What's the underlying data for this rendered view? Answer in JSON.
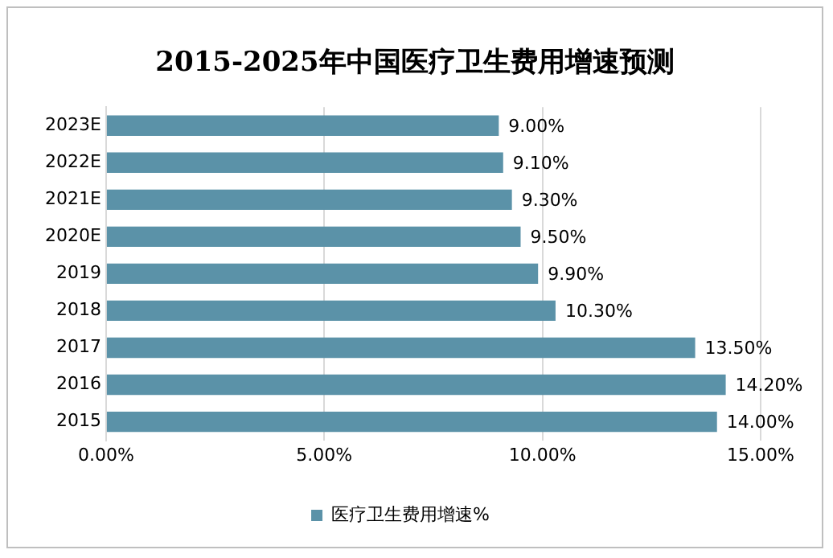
{
  "chart_data": {
    "type": "bar",
    "orientation": "horizontal",
    "title": "2015-2025年中国医疗卫生费用增速预测",
    "categories": [
      "2023E",
      "2022E",
      "2021E",
      "2020E",
      "2019",
      "2018",
      "2017",
      "2016",
      "2015"
    ],
    "series": [
      {
        "name": "医疗卫生费用增速%",
        "color": "#5b92a8",
        "values": [
          9.0,
          9.1,
          9.3,
          9.5,
          9.9,
          10.3,
          13.5,
          14.2,
          14.0
        ],
        "value_labels": [
          "9.00%",
          "9.10%",
          "9.30%",
          "9.50%",
          "9.90%",
          "10.30%",
          "13.50%",
          "14.20%",
          "14.00%"
        ]
      }
    ],
    "xlim": [
      0,
      15
    ],
    "xticks": [
      {
        "value": 0,
        "label": "0.00%"
      },
      {
        "value": 5,
        "label": "5.00%"
      },
      {
        "value": 10,
        "label": "10.00%"
      },
      {
        "value": 15,
        "label": "15.00%"
      }
    ],
    "grid": "x",
    "legend": "bottom"
  }
}
